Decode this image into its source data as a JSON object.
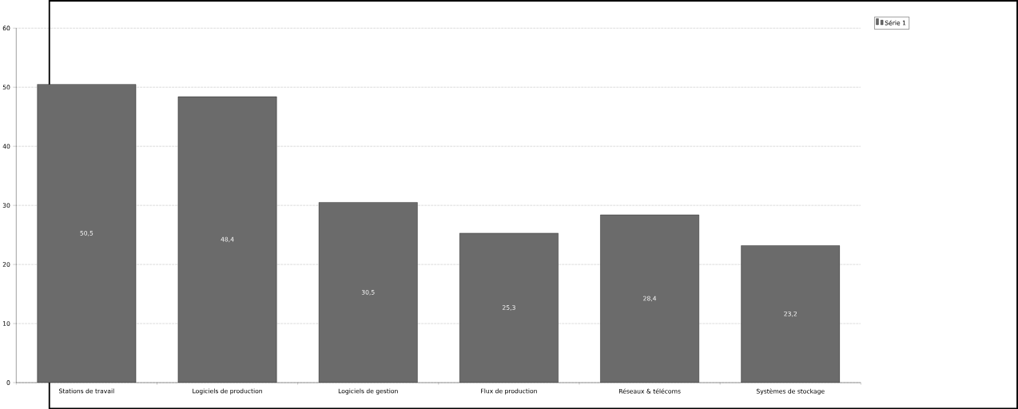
{
  "chart_data": {
    "type": "bar",
    "categories": [
      "Stations de travail",
      "Logiciels de production",
      "Logiciels de gestion",
      "Flux de production",
      "Réseaux & télécoms",
      "Systèmes de stockage"
    ],
    "series": [
      {
        "name": "Série 1",
        "color": "#6b6b6b",
        "values": [
          50.5,
          48.4,
          30.5,
          25.3,
          28.4,
          23.2
        ],
        "value_labels": [
          "50,5",
          "48,4",
          "30,5",
          "25,3",
          "28,4",
          "23,2"
        ]
      }
    ],
    "ylim": [
      0,
      60
    ],
    "yticks": [
      0,
      10,
      20,
      30,
      40,
      50,
      60
    ],
    "grid": "y",
    "legend": "top right"
  }
}
